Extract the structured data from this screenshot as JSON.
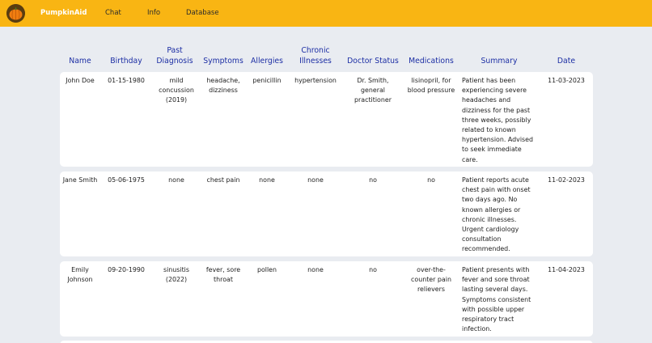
{
  "nav": {
    "brand": "PumpkinAid",
    "links": [
      "Chat",
      "Info",
      "Database"
    ]
  },
  "colors": {
    "navbar": "#f9b513",
    "header_text": "#1c2ea4",
    "background": "#e9ecf1",
    "card": "#ffffff"
  },
  "icons": {
    "logo": "pumpkin-icon"
  },
  "table": {
    "headers": [
      "Name",
      "Birthday",
      "Past Diagnosis",
      "Symptoms",
      "Allergies",
      "Chronic Illnesses",
      "Doctor Status",
      "Medications",
      "Summary",
      "Date"
    ],
    "rows": [
      {
        "name": "John Doe",
        "birthday": "01-15-1980",
        "past_diagnosis": "mild concussion (2019)",
        "symptoms": "headache, dizziness",
        "allergies": "penicillin",
        "chronic": "hypertension",
        "doctor_status": "Dr. Smith, general practitioner",
        "medications": "lisinopril, for blood pressure",
        "summary": "Patient has been experiencing severe headaches and dizziness for the past three weeks, possibly related to known hypertension. Advised to seek immediate care.",
        "date": "11-03-2023"
      },
      {
        "name": "Jane Smith",
        "birthday": "05-06-1975",
        "past_diagnosis": "none",
        "symptoms": "chest pain",
        "allergies": "none",
        "chronic": "none",
        "doctor_status": "no",
        "medications": "no",
        "summary": "Patient reports acute chest pain with onset two days ago. No known allergies or chronic illnesses. Urgent cardiology consultation recommended.",
        "date": "11-02-2023"
      },
      {
        "name": "Emily Johnson",
        "birthday": "09-20-1990",
        "past_diagnosis": "sinusitis (2022)",
        "symptoms": "fever, sore throat",
        "allergies": "pollen",
        "chronic": "none",
        "doctor_status": "no",
        "medications": "over-the-counter pain relievers",
        "summary": "Patient presents with fever and sore throat lasting several days. Symptoms consistent with possible upper respiratory tract infection.",
        "date": "11-04-2023"
      }
    ]
  }
}
